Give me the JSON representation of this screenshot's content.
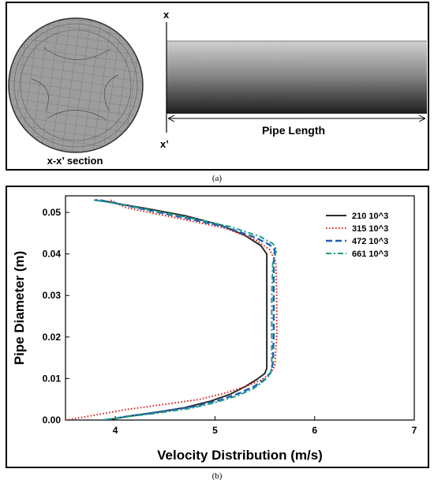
{
  "panel_a": {
    "label_x_top": "x",
    "label_x_bottom": "x’",
    "section_label": "x-x’ section",
    "length_label": "Pipe Length",
    "caption": "(a)"
  },
  "panel_b": {
    "caption": "(b)"
  },
  "chart_data": {
    "type": "line",
    "title": "",
    "xlabel": "Velocity Distribution (m/s)",
    "ylabel": "Pipe Diameter (m)",
    "xlim": [
      3.5,
      7
    ],
    "ylim": [
      0,
      0.054
    ],
    "xticks": [
      "4",
      "5",
      "6",
      "7"
    ],
    "yticks": [
      "0.00",
      "0.01",
      "0.02",
      "0.03",
      "0.04",
      "0.05"
    ],
    "xtick_values": [
      4,
      5,
      6,
      7
    ],
    "ytick_values": [
      0,
      0.01,
      0.02,
      0.03,
      0.04,
      0.05
    ],
    "grid": false,
    "legend_position": "top-right",
    "series": [
      {
        "name": "210 10^3",
        "color": "#2b2b2b",
        "dash": "solid",
        "points": [
          [
            3.92,
            0.0
          ],
          [
            4.1,
            0.0008
          ],
          [
            4.4,
            0.0018
          ],
          [
            4.7,
            0.003
          ],
          [
            4.95,
            0.0045
          ],
          [
            5.15,
            0.0062
          ],
          [
            5.3,
            0.008
          ],
          [
            5.42,
            0.0098
          ],
          [
            5.5,
            0.0112
          ],
          [
            5.52,
            0.0125
          ],
          [
            5.52,
            0.02
          ],
          [
            5.52,
            0.03
          ],
          [
            5.52,
            0.037
          ],
          [
            5.52,
            0.04
          ],
          [
            5.46,
            0.042
          ],
          [
            5.3,
            0.0445
          ],
          [
            5.05,
            0.047
          ],
          [
            4.7,
            0.0492
          ],
          [
            4.3,
            0.051
          ],
          [
            4.0,
            0.0522
          ],
          [
            3.85,
            0.053
          ]
        ]
      },
      {
        "name": "315 10^3",
        "color": "#d9231f",
        "dash": "dotted",
        "points": [
          [
            3.5,
            0.0
          ],
          [
            3.75,
            0.001
          ],
          [
            4.1,
            0.0025
          ],
          [
            4.5,
            0.0038
          ],
          [
            4.85,
            0.005
          ],
          [
            5.1,
            0.0065
          ],
          [
            5.3,
            0.008
          ],
          [
            5.45,
            0.0095
          ],
          [
            5.55,
            0.011
          ],
          [
            5.6,
            0.013
          ],
          [
            5.62,
            0.02
          ],
          [
            5.62,
            0.03
          ],
          [
            5.61,
            0.038
          ],
          [
            5.55,
            0.041
          ],
          [
            5.4,
            0.0435
          ],
          [
            5.1,
            0.0462
          ],
          [
            4.75,
            0.048
          ],
          [
            4.4,
            0.0497
          ],
          [
            4.1,
            0.0512
          ],
          [
            3.95,
            0.053
          ]
        ]
      },
      {
        "name": "472 10^3",
        "color": "#1f5fb4",
        "dash": "dashed",
        "points": [
          [
            3.9,
            0.0
          ],
          [
            4.1,
            0.0008
          ],
          [
            4.45,
            0.002
          ],
          [
            4.8,
            0.0033
          ],
          [
            5.05,
            0.0048
          ],
          [
            5.25,
            0.0065
          ],
          [
            5.4,
            0.0082
          ],
          [
            5.5,
            0.0098
          ],
          [
            5.56,
            0.0115
          ],
          [
            5.58,
            0.0135
          ],
          [
            5.59,
            0.02
          ],
          [
            5.59,
            0.03
          ],
          [
            5.59,
            0.038
          ],
          [
            5.6,
            0.041
          ],
          [
            5.55,
            0.0422
          ],
          [
            5.4,
            0.044
          ],
          [
            5.1,
            0.0465
          ],
          [
            4.7,
            0.0487
          ],
          [
            4.3,
            0.0507
          ],
          [
            3.95,
            0.0525
          ],
          [
            3.8,
            0.053
          ]
        ]
      },
      {
        "name": "661 10^3",
        "color": "#1e9e86",
        "dash": "dashdot",
        "points": [
          [
            3.87,
            0.0
          ],
          [
            4.05,
            0.0006
          ],
          [
            4.4,
            0.0016
          ],
          [
            4.75,
            0.0028
          ],
          [
            5.0,
            0.0042
          ],
          [
            5.22,
            0.0058
          ],
          [
            5.38,
            0.0075
          ],
          [
            5.48,
            0.0092
          ],
          [
            5.55,
            0.0108
          ],
          [
            5.57,
            0.0125
          ],
          [
            5.57,
            0.02
          ],
          [
            5.57,
            0.03
          ],
          [
            5.58,
            0.038
          ],
          [
            5.62,
            0.041
          ],
          [
            5.58,
            0.0425
          ],
          [
            5.45,
            0.0442
          ],
          [
            5.15,
            0.0466
          ],
          [
            4.72,
            0.0488
          ],
          [
            4.3,
            0.0508
          ],
          [
            3.92,
            0.0525
          ],
          [
            3.78,
            0.053
          ]
        ]
      }
    ]
  }
}
